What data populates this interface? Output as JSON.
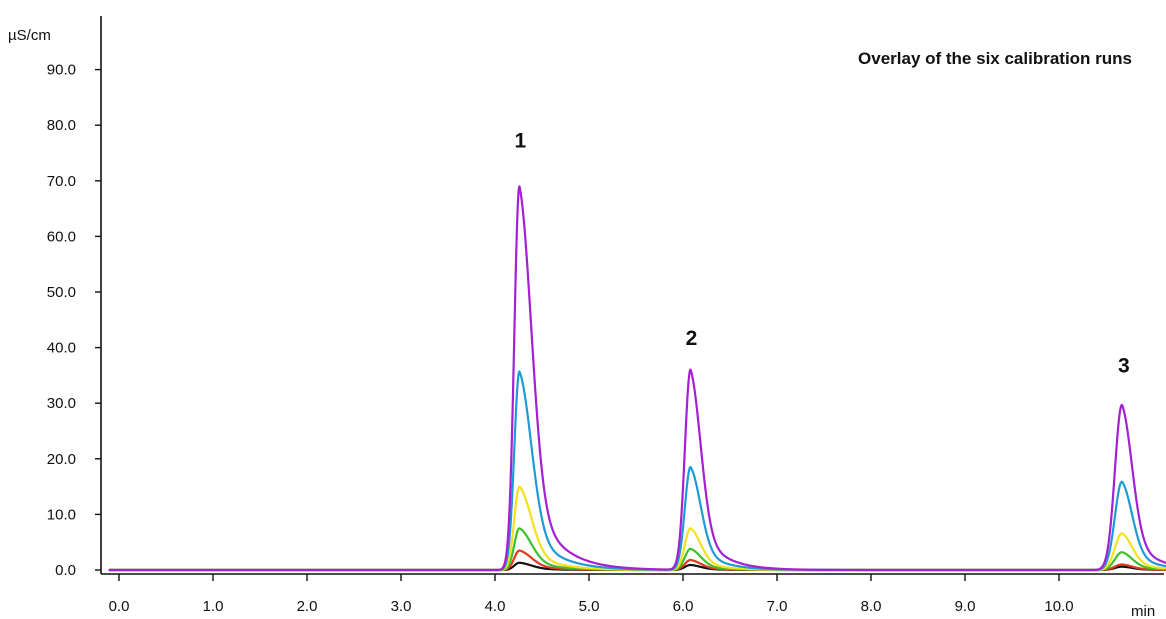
{
  "chart_data": {
    "type": "line",
    "title": "Overlay of the six calibration runs",
    "xlabel": "min",
    "ylabel": "µS/cm",
    "xlim": [
      -0.1,
      11.4
    ],
    "ylim": [
      -1.0,
      100.0
    ],
    "x_ticks": [
      "0.0",
      "1.0",
      "2.0",
      "3.0",
      "4.0",
      "5.0",
      "6.0",
      "7.0",
      "8.0",
      "9.0",
      "10.0"
    ],
    "y_ticks": [
      "0.0",
      "10.0",
      "20.0",
      "30.0",
      "40.0",
      "50.0",
      "60.0",
      "70.0",
      "80.0",
      "90.0"
    ],
    "grid": false,
    "legend": "none",
    "annotations": [
      {
        "text": "1",
        "x": 4.27,
        "y": 76.0
      },
      {
        "text": "2",
        "x": 6.09,
        "y": 40.5
      },
      {
        "text": "3",
        "x": 10.69,
        "y": 35.5
      }
    ],
    "peaks": [
      {
        "label": "1",
        "retention_min": 4.26
      },
      {
        "label": "2",
        "retention_min": 6.08
      },
      {
        "label": "3",
        "retention_min": 10.67
      }
    ],
    "baseline": 0.0,
    "series": [
      {
        "color": "#111111",
        "peak_heights": [
          1.3,
          0.9,
          0.6
        ]
      },
      {
        "color": "#e03a1e",
        "peak_heights": [
          3.5,
          1.8,
          1.0
        ]
      },
      {
        "color": "#3cc12a",
        "peak_heights": [
          7.5,
          3.8,
          3.2
        ]
      },
      {
        "color": "#f2e21c",
        "peak_heights": [
          15.0,
          7.5,
          6.6
        ]
      },
      {
        "color": "#1e9ad6",
        "peak_heights": [
          35.7,
          18.5,
          15.9
        ]
      },
      {
        "color": "#a51fd3",
        "peak_heights": [
          69.0,
          36.0,
          29.7
        ]
      }
    ]
  }
}
